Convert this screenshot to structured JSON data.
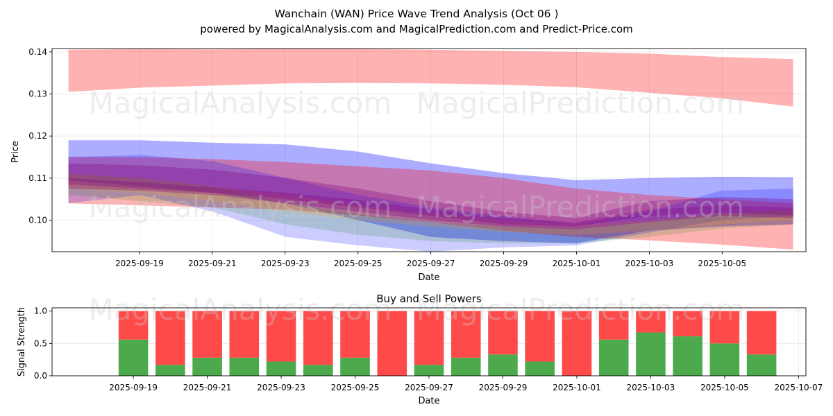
{
  "chart_data": [
    {
      "type": "area",
      "title": "Wanchain (WAN) Price Wave Trend Analysis (Oct 06 )",
      "subtitle": "powered by MagicalAnalysis.com and MagicalPrediction.com and Predict-Price.com",
      "xlabel": "Date",
      "ylabel": "Price",
      "xlim": [
        "2025-09-16.6",
        "2025-10-07.3"
      ],
      "ylim": [
        0.0925,
        0.1408
      ],
      "x_ticks": [
        "2025-09-19",
        "2025-09-21",
        "2025-09-23",
        "2025-09-25",
        "2025-09-27",
        "2025-09-29",
        "2025-10-01",
        "2025-10-03",
        "2025-10-05"
      ],
      "y_ticks": [
        0.1,
        0.11,
        0.12,
        0.13,
        0.14
      ],
      "y_tick_labels": [
        "0.10",
        "0.11",
        "0.12",
        "0.13",
        "0.14"
      ],
      "watermark": [
        "MagicalAnalysis.com",
        "MagicalPrediction.com"
      ],
      "grid": true,
      "bands": [
        {
          "name": "red-upper",
          "color": "#ff0000",
          "opacity": 0.3,
          "x": [
            0,
            3,
            6,
            9,
            12,
            15,
            18,
            21,
            24,
            27,
            30
          ],
          "upper": [
            0.1405,
            0.1407,
            0.1406,
            0.1408,
            0.1407,
            0.1405,
            0.1402,
            0.14,
            0.1396,
            0.1388,
            0.1383
          ],
          "lower": [
            0.1305,
            0.1315,
            0.132,
            0.1325,
            0.1326,
            0.1325,
            0.1322,
            0.1316,
            0.1303,
            0.129,
            0.127
          ]
        },
        {
          "name": "blue-wide",
          "color": "#0000ff",
          "opacity": 0.32,
          "x": [
            0,
            3,
            6,
            9,
            12,
            15,
            18,
            21,
            24,
            27,
            30
          ],
          "upper": [
            0.119,
            0.119,
            0.1184,
            0.118,
            0.1163,
            0.1135,
            0.1112,
            0.1095,
            0.11,
            0.1103,
            0.1102
          ],
          "lower": [
            0.1095,
            0.108,
            0.1065,
            0.104,
            0.1,
            0.096,
            0.095,
            0.0945,
            0.0975,
            0.0985,
            0.099
          ]
        },
        {
          "name": "red-lower",
          "color": "#ff0000",
          "opacity": 0.3,
          "x": [
            0,
            3,
            6,
            9,
            12,
            15,
            18,
            21,
            24,
            27,
            30
          ],
          "upper": [
            0.115,
            0.115,
            0.1145,
            0.1138,
            0.1128,
            0.1118,
            0.11,
            0.1075,
            0.106,
            0.105,
            0.104
          ],
          "lower": [
            0.104,
            0.1035,
            0.103,
            0.1025,
            0.101,
            0.0995,
            0.0975,
            0.096,
            0.0952,
            0.0942,
            0.093
          ]
        },
        {
          "name": "blue-wave",
          "color": "#0000ff",
          "opacity": 0.2,
          "x": [
            0,
            3,
            6,
            9,
            12,
            15,
            18,
            21,
            24,
            27,
            30
          ],
          "upper": [
            0.115,
            0.1155,
            0.114,
            0.11,
            0.106,
            0.103,
            0.101,
            0.099,
            0.102,
            0.107,
            0.1075
          ],
          "lower": [
            0.104,
            0.106,
            0.102,
            0.096,
            0.094,
            0.0925,
            0.0935,
            0.094,
            0.097,
            0.1,
            0.101
          ]
        },
        {
          "name": "green-wave",
          "color": "#008000",
          "opacity": 0.16,
          "x": [
            0,
            3,
            6,
            9,
            12,
            15,
            18,
            21,
            24,
            27,
            30
          ],
          "upper": [
            0.111,
            0.11,
            0.108,
            0.104,
            0.1015,
            0.0995,
            0.0985,
            0.098,
            0.0995,
            0.1015,
            0.1025
          ],
          "lower": [
            0.106,
            0.1045,
            0.103,
            0.099,
            0.0965,
            0.095,
            0.0945,
            0.0945,
            0.096,
            0.098,
            0.099
          ]
        },
        {
          "name": "orange-wave",
          "color": "#ffa500",
          "opacity": 0.2,
          "x": [
            0,
            3,
            6,
            9,
            12,
            15,
            18,
            21,
            24,
            27,
            30
          ],
          "upper": [
            0.111,
            0.11,
            0.108,
            0.106,
            0.1035,
            0.1015,
            0.1,
            0.099,
            0.1,
            0.1015,
            0.1025
          ],
          "lower": [
            0.1075,
            0.1065,
            0.1045,
            0.102,
            0.1,
            0.0985,
            0.0972,
            0.0965,
            0.0975,
            0.099,
            0.1
          ]
        },
        {
          "name": "purple-wave",
          "color": "#800080",
          "opacity": 0.32,
          "x": [
            0,
            3,
            6,
            9,
            12,
            15,
            18,
            21,
            24,
            27,
            30
          ],
          "upper": [
            0.1135,
            0.113,
            0.112,
            0.11,
            0.1075,
            0.1045,
            0.102,
            0.1005,
            0.1045,
            0.1055,
            0.105
          ],
          "lower": [
            0.1075,
            0.107,
            0.106,
            0.104,
            0.102,
            0.1,
            0.0985,
            0.0978,
            0.0995,
            0.101,
            0.1005
          ]
        },
        {
          "name": "purple-core",
          "color": "#800080",
          "opacity": 0.3,
          "x": [
            0,
            3,
            6,
            9,
            12,
            15,
            18,
            21,
            24,
            27,
            30
          ],
          "upper": [
            0.11,
            0.109,
            0.1078,
            0.1065,
            0.1048,
            0.1025,
            0.1005,
            0.0995,
            0.1025,
            0.1035,
            0.103
          ],
          "lower": [
            0.1085,
            0.1075,
            0.1065,
            0.105,
            0.103,
            0.101,
            0.099,
            0.0985,
            0.101,
            0.1018,
            0.1012
          ]
        }
      ]
    },
    {
      "type": "bar",
      "stacked": true,
      "title": "Buy and Sell Powers",
      "xlabel": "Date",
      "ylabel": "Signal Strength",
      "ylim": [
        0,
        1.05
      ],
      "y_ticks": [
        0.0,
        0.5,
        1.0
      ],
      "y_tick_labels": [
        "0.0",
        "0.5",
        "1.0"
      ],
      "x_ticks": [
        "2025-09-19",
        "2025-09-21",
        "2025-09-23",
        "2025-09-25",
        "2025-09-27",
        "2025-09-29",
        "2025-10-01",
        "2025-10-03",
        "2025-10-05",
        "2025-10-07"
      ],
      "categories": [
        "2025-09-19",
        "2025-09-20",
        "2025-09-21",
        "2025-09-22",
        "2025-09-23",
        "2025-09-24",
        "2025-09-25",
        "2025-09-26",
        "2025-09-27",
        "2025-09-28",
        "2025-09-29",
        "2025-09-30",
        "2025-10-01",
        "2025-10-02",
        "2025-10-03",
        "2025-10-04",
        "2025-10-05",
        "2025-10-06"
      ],
      "series": [
        {
          "name": "Buy",
          "color": "#4caa4c",
          "values": [
            0.56,
            0.17,
            0.28,
            0.28,
            0.22,
            0.17,
            0.28,
            0.0,
            0.17,
            0.28,
            0.33,
            0.22,
            0.0,
            0.56,
            0.67,
            0.61,
            0.5,
            0.33
          ]
        },
        {
          "name": "Sell",
          "color": "#ff4a4a",
          "values": [
            0.44,
            0.83,
            0.72,
            0.72,
            0.78,
            0.83,
            0.72,
            1.0,
            0.83,
            0.72,
            0.67,
            0.78,
            1.0,
            0.44,
            0.33,
            0.39,
            0.5,
            0.67
          ]
        }
      ]
    }
  ]
}
